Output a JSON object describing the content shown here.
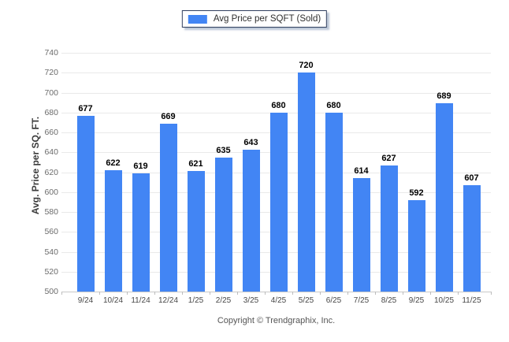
{
  "chart_data": {
    "type": "bar",
    "title": "",
    "categories": [
      "9/24",
      "10/24",
      "11/24",
      "12/24",
      "1/25",
      "2/25",
      "3/25",
      "4/25",
      "5/25",
      "6/25",
      "7/25",
      "8/25",
      "9/25",
      "10/25",
      "11/25"
    ],
    "series": [
      {
        "name": "Avg Price per SQFT (Sold)",
        "color": "#4285F4",
        "values": [
          677,
          622,
          619,
          669,
          621,
          635,
          643,
          680,
          720,
          680,
          614,
          627,
          592,
          689,
          607
        ]
      }
    ],
    "xlabel": "",
    "ylabel": "Avg. Price per SQ. FT.",
    "ylim": [
      500,
      740
    ],
    "ytick_step": 20,
    "yticks": [
      500,
      520,
      540,
      560,
      580,
      600,
      620,
      640,
      660,
      680,
      700,
      720,
      740
    ],
    "grid": true,
    "legend_position": "top-center",
    "bar_value_labels": true
  },
  "footer": {
    "copyright": "Copyright © Trendgraphix, Inc."
  }
}
